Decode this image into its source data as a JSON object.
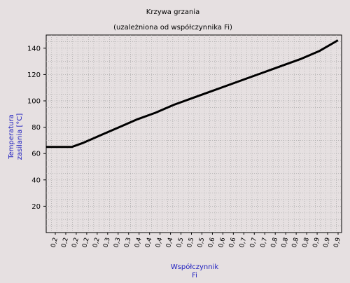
{
  "chart_data": {
    "type": "line",
    "title": "Krzywa grzania",
    "subtitle": "(uzależniona od współczynnika Fi)",
    "xlabel": [
      "Współczynnik",
      "Fi"
    ],
    "ylabel": [
      "Temperatura",
      "zasilania [°C]"
    ],
    "ylim": [
      0,
      150
    ],
    "y_ticks": [
      20,
      40,
      60,
      80,
      100,
      120,
      140
    ],
    "x_tick_labels": [
      "0,2",
      "0,2",
      "0,2",
      "0,2",
      "0,2",
      "0,3",
      "0,3",
      "0,3",
      "0,4",
      "0,4",
      "0,4",
      "0,4",
      "0,5",
      "0,5",
      "0,5",
      "0,6",
      "0,6",
      "0,6",
      "0,7",
      "0,7",
      "0,7",
      "0,8",
      "0,8",
      "0,8",
      "0,8",
      "0,9",
      "0,9",
      "0,9"
    ],
    "grid": true,
    "series": [
      {
        "line_color": "#000000",
        "x": [
          0.15,
          0.2,
          0.22,
          0.25,
          0.3,
          0.35,
          0.4,
          0.45,
          0.5,
          0.55,
          0.6,
          0.65,
          0.7,
          0.75,
          0.8,
          0.85,
          0.9,
          0.95
        ],
        "y": [
          65,
          65,
          65,
          68,
          74,
          80,
          86,
          91,
          97,
          102,
          107,
          112,
          117,
          122,
          127,
          132,
          138,
          146
        ]
      }
    ]
  },
  "colors": {
    "background": "#e6e0e1",
    "axis_label": "#2020c0",
    "grid": "#a8a8a8",
    "line": "#000000",
    "text": "#000000"
  }
}
